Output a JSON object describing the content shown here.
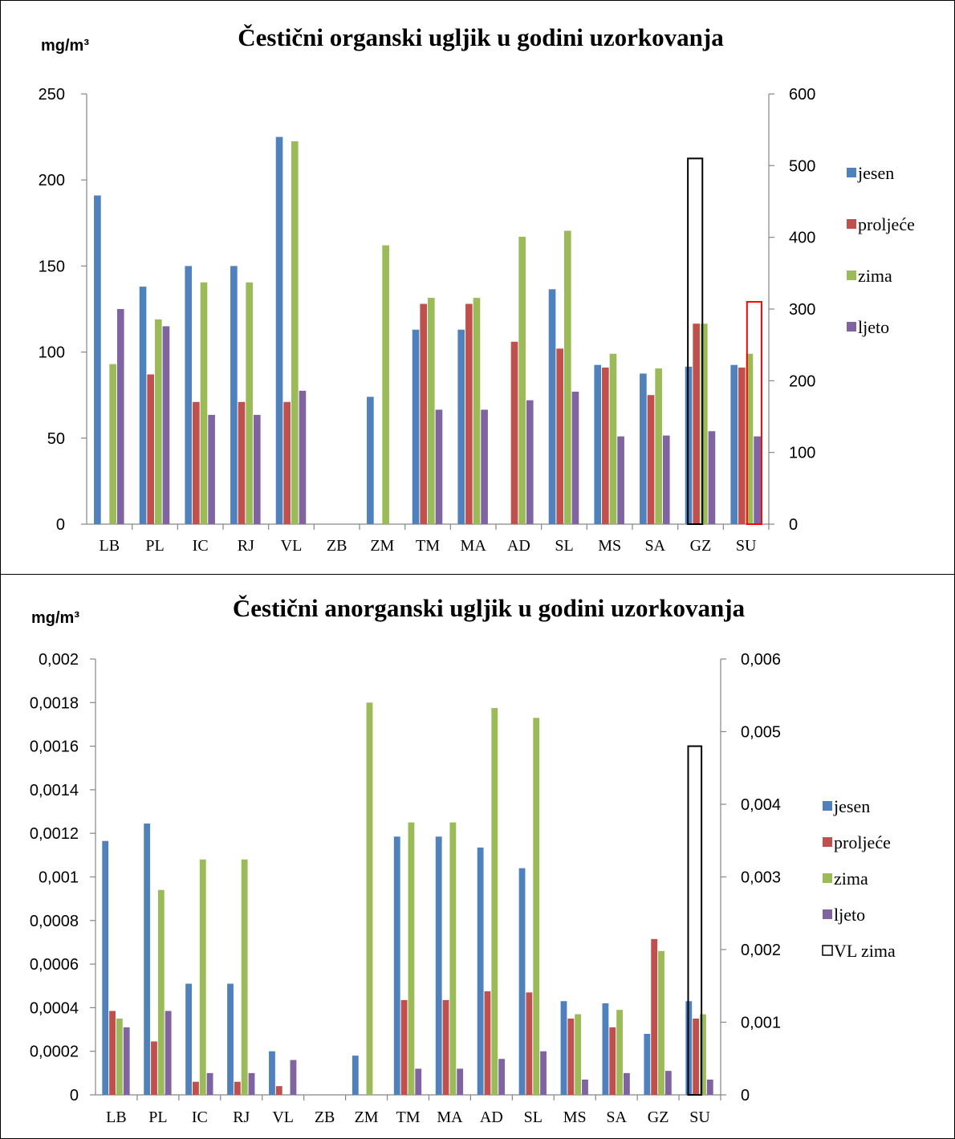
{
  "chart_data": [
    {
      "type": "bar",
      "title": "Čestični organski ugljik u godini uzorkovanja",
      "unit_label": "mg/m³",
      "categories": [
        "LB",
        "PL",
        "IC",
        "RJ",
        "VL",
        "ZB",
        "ZM",
        "TM",
        "MA",
        "AD",
        "SL",
        "MS",
        "SA",
        "GZ",
        "SU"
      ],
      "ylim": [
        0,
        250
      ],
      "yticks": [
        "0",
        "50",
        "100",
        "150",
        "200",
        "250"
      ],
      "ylim_right": [
        0,
        600
      ],
      "yticks_right": [
        "0",
        "100",
        "200",
        "300",
        "400",
        "500",
        "600"
      ],
      "series": [
        {
          "name": "jesen",
          "color": "#4f81bd",
          "values": [
            191,
            138,
            150,
            150,
            225,
            null,
            74,
            113,
            113,
            null,
            136.5,
            92.5,
            87.5,
            91.5,
            92.5
          ]
        },
        {
          "name": "proljeće",
          "color": "#c0504d",
          "values": [
            null,
            87,
            71,
            71,
            71,
            null,
            null,
            128,
            128,
            106,
            102,
            91,
            75,
            116.5,
            91
          ]
        },
        {
          "name": "zima",
          "color": "#9bbb59",
          "values": [
            93,
            119,
            140.5,
            140.5,
            222.5,
            null,
            162,
            131.5,
            131.5,
            167,
            170.5,
            99,
            90.5,
            116.5,
            99
          ]
        },
        {
          "name": "ljeto",
          "color": "#8064a2",
          "values": [
            125,
            115,
            63.5,
            63.5,
            77.5,
            null,
            null,
            66.5,
            66.5,
            72,
            77,
            51,
            51.5,
            54,
            51
          ]
        }
      ],
      "outlines": [
        {
          "category": "GZ",
          "span": "middle",
          "color": "#000000",
          "value_right_axis": 510
        },
        {
          "category": "SU",
          "span": "right",
          "color": "#ff0000",
          "value_right_axis": 310
        }
      ],
      "legend_position": "right"
    },
    {
      "type": "bar",
      "title": "Čestični anorganski ugljik u godini uzorkovanja",
      "unit_label": "mg/m³",
      "categories": [
        "LB",
        "PL",
        "IC",
        "RJ",
        "VL",
        "ZB",
        "ZM",
        "TM",
        "MA",
        "AD",
        "SL",
        "MS",
        "SA",
        "GZ",
        "SU"
      ],
      "ylim": [
        0,
        0.002
      ],
      "yticks": [
        "0",
        "0,0002",
        "0,0004",
        "0,0006",
        "0,0008",
        "0,001",
        "0,0012",
        "0,0014",
        "0,0016",
        "0,0018",
        "0,002"
      ],
      "ylim_right": [
        0,
        0.006
      ],
      "yticks_right": [
        "0",
        "0,001",
        "0,002",
        "0,003",
        "0,004",
        "0,005",
        "0,006"
      ],
      "series": [
        {
          "name": "jesen",
          "color": "#4f81bd",
          "values": [
            0.001165,
            0.001245,
            0.00051,
            0.00051,
            0.0002,
            null,
            0.00018,
            0.001185,
            0.001185,
            0.001135,
            0.00104,
            0.00043,
            0.00042,
            0.00028,
            0.00043
          ]
        },
        {
          "name": "proljeće",
          "color": "#c0504d",
          "values": [
            0.000385,
            0.000245,
            6e-05,
            6e-05,
            4e-05,
            null,
            null,
            0.000435,
            0.000435,
            0.000475,
            0.00047,
            0.00035,
            0.00031,
            0.000715,
            0.00035
          ]
        },
        {
          "name": "zima",
          "color": "#9bbb59",
          "values": [
            0.00035,
            0.00094,
            0.00108,
            0.00108,
            null,
            null,
            0.0018,
            0.00125,
            0.00125,
            0.001775,
            0.00173,
            0.00037,
            0.00039,
            0.00066,
            0.00037
          ]
        },
        {
          "name": "ljeto",
          "color": "#8064a2",
          "values": [
            0.00031,
            0.000385,
            0.0001,
            0.0001,
            0.00016,
            null,
            null,
            0.00012,
            0.00012,
            0.000165,
            0.0002,
            7e-05,
            0.0001,
            0.00011,
            7e-05
          ]
        }
      ],
      "extra_legend": {
        "name": "VL zima",
        "color": "#000000"
      },
      "outlines": [
        {
          "category": "SU",
          "span": "middle",
          "color": "#000000",
          "value_right_axis": 0.0048
        }
      ],
      "legend_position": "right"
    }
  ]
}
